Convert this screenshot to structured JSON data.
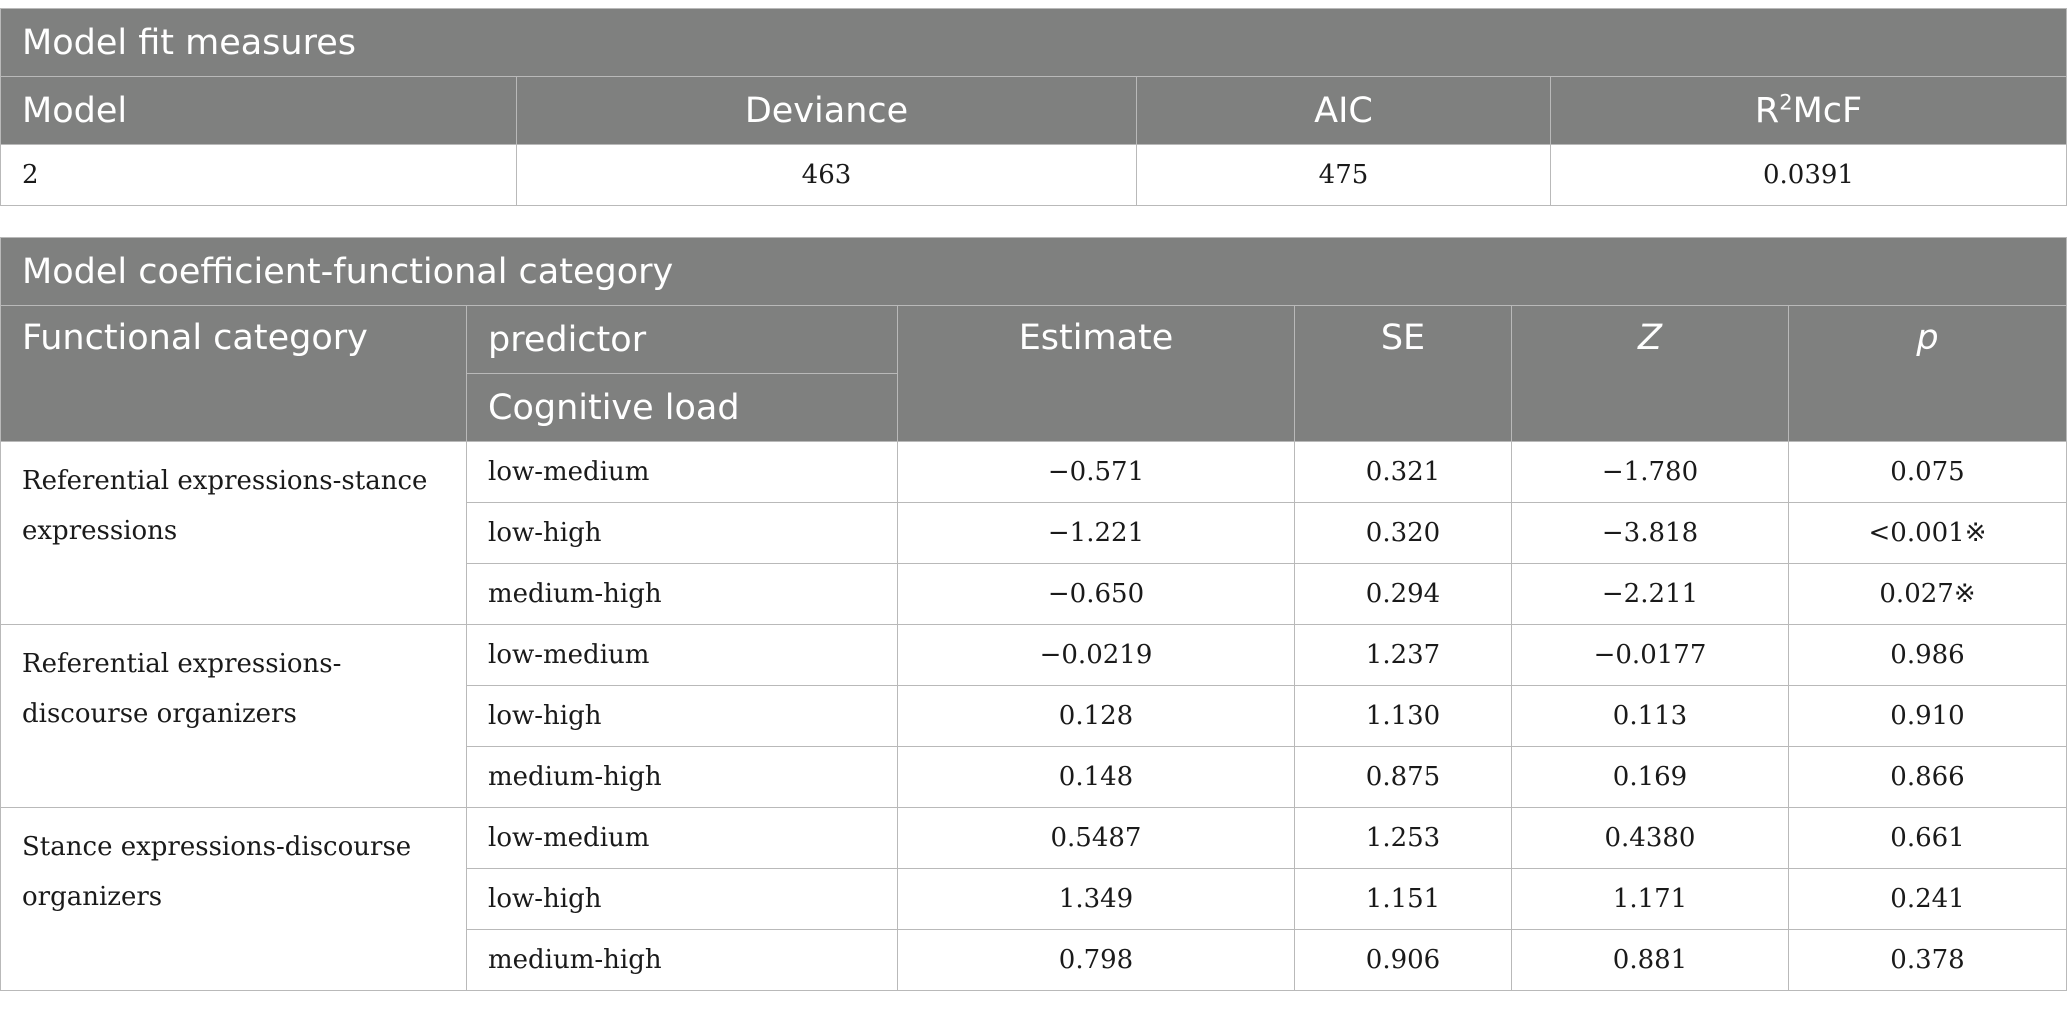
{
  "fit_table": {
    "title": "Model fit measures",
    "headers": [
      "Model",
      "Deviance",
      "AIC",
      "R",
      "2",
      "McF"
    ],
    "row": [
      "2",
      "463",
      "475",
      "0.0391"
    ]
  },
  "coef_table": {
    "title": "Model coefficient-functional category",
    "headers": {
      "functional_category": "Functional category",
      "predictor": "predictor",
      "cognitive_load": "Cognitive load",
      "estimate": "Estimate",
      "se": "SE",
      "z": "Z",
      "p": "p"
    },
    "groups": [
      {
        "category": "Referential expressions-stance expressions",
        "rows": [
          {
            "predictor": "low-medium",
            "estimate": "−0.571",
            "se": "0.321",
            "z": "−1.780",
            "p": "0.075"
          },
          {
            "predictor": "low-high",
            "estimate": "−1.221",
            "se": "0.320",
            "z": "−3.818",
            "p": "<0.001※"
          },
          {
            "predictor": "medium-high",
            "estimate": "−0.650",
            "se": "0.294",
            "z": "−2.211",
            "p": "0.027※"
          }
        ]
      },
      {
        "category": "Referential expressions-discourse organizers",
        "rows": [
          {
            "predictor": "low-medium",
            "estimate": "−0.0219",
            "se": "1.237",
            "z": "−0.0177",
            "p": "0.986"
          },
          {
            "predictor": "low-high",
            "estimate": "0.128",
            "se": "1.130",
            "z": "0.113",
            "p": "0.910"
          },
          {
            "predictor": "medium-high",
            "estimate": "0.148",
            "se": "0.875",
            "z": "0.169",
            "p": "0.866"
          }
        ]
      },
      {
        "category": "Stance expressions-discourse organizers",
        "rows": [
          {
            "predictor": "low-medium",
            "estimate": "0.5487",
            "se": "1.253",
            "z": "0.4380",
            "p": "0.661"
          },
          {
            "predictor": "low-high",
            "estimate": "1.349",
            "se": "1.151",
            "z": "1.171",
            "p": "0.241"
          },
          {
            "predictor": "medium-high",
            "estimate": "0.798",
            "se": "0.906",
            "z": "0.881",
            "p": "0.378"
          }
        ]
      }
    ]
  }
}
